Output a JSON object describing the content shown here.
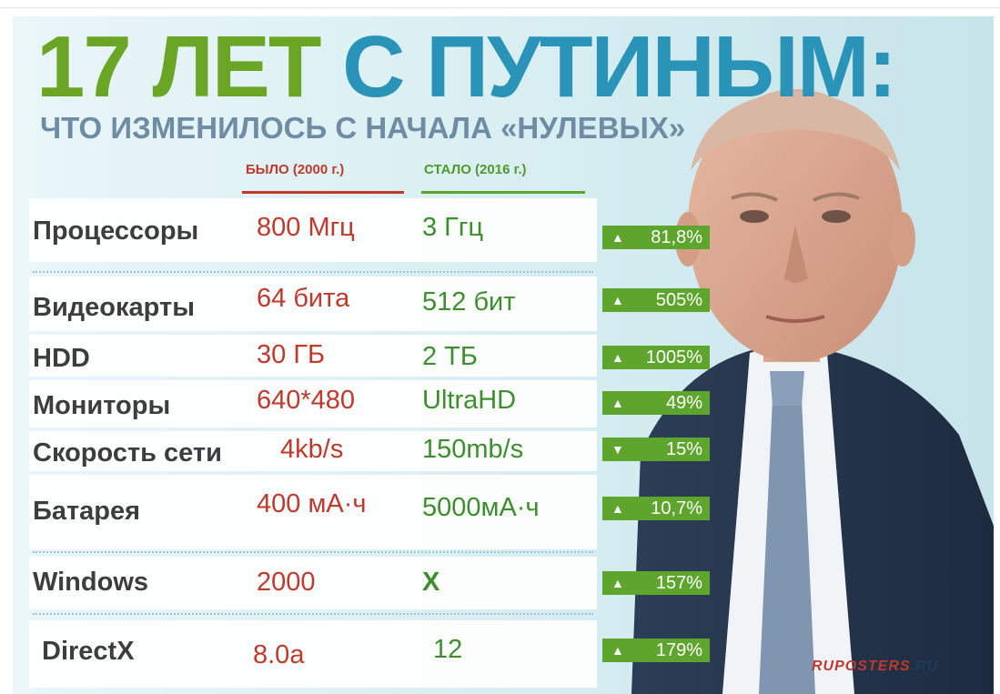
{
  "title": {
    "part1": "17 ЛЕТ",
    "part2": "С ПУТИНЫМ:"
  },
  "subtitle": "ЧТО ИЗМЕНИЛОСЬ С НАЧАЛА «НУЛЕВЫХ»",
  "columns": {
    "before": "БЫЛО (2000 г.)",
    "after": "СТАЛО (2016 г.)"
  },
  "rows": [
    {
      "name": "Процессоры",
      "before": "800 Мгц",
      "after": "3 Ггц",
      "arrow": "▲",
      "change": "81,8%"
    },
    {
      "name": "Видеокарты",
      "before": "64 бита",
      "after": "512 бит",
      "arrow": "▲",
      "change": "505%"
    },
    {
      "name": "HDD",
      "before": "30 ГБ",
      "after": "2 ТБ",
      "arrow": "▲",
      "change": "1005%"
    },
    {
      "name": "Мониторы",
      "before": "640*480",
      "after": "UltraHD",
      "arrow": "▲",
      "change": "49%"
    },
    {
      "name": "Скорость сети",
      "before": "4kb/s",
      "after": "150mb/s",
      "arrow": "▼",
      "change": "15%"
    },
    {
      "name": "Батарея",
      "before": "400 мА·ч",
      "after": "5000мА·ч",
      "arrow": "▲",
      "change": "10,7%"
    },
    {
      "name": "Windows",
      "before": "2000",
      "after": "X",
      "arrow": "▲",
      "change": "157%"
    },
    {
      "name": "DirectX",
      "before": "8.0a",
      "after": "12",
      "arrow": "▲",
      "change": "179%"
    }
  ],
  "logo": {
    "main": "RUPOSTERS",
    "suffix": ".RU"
  },
  "colors": {
    "green": "#6aa526",
    "blue": "#2a93b8",
    "red": "#c0392b",
    "badge": "#5da52d"
  }
}
